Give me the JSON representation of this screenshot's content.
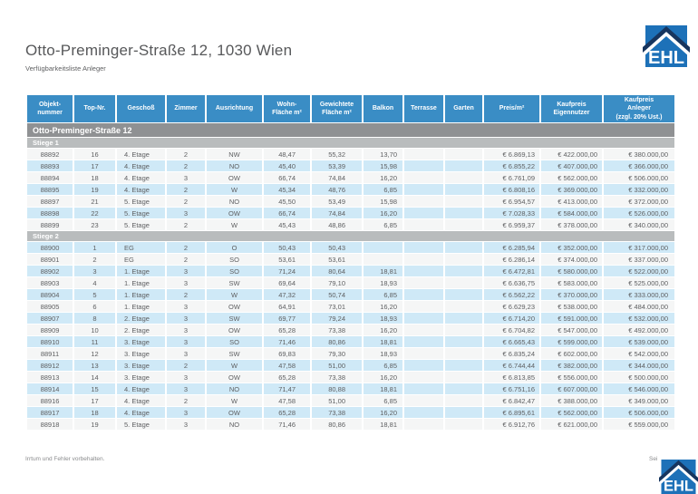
{
  "page": {
    "title": "Otto-Preminger-Straße 12, 1030 Wien",
    "subtitle": "Verfügbarkeitsliste Anleger",
    "footer_left": "Irrtum und Fehler vorbehalten.",
    "footer_right": "Sei",
    "logo_text": "EHL"
  },
  "colors": {
    "header_blue": "#3a8dc5",
    "row_blue": "#cfe9f7",
    "row_light": "#f5f6f6",
    "group_gray": "#8f9193",
    "stiege_gray": "#b9bcbd",
    "logo_blue": "#1d71b8",
    "logo_navy": "#17355e",
    "text_gray": "#5e5f61"
  },
  "table": {
    "group_header": "Otto-Preminger-Straße 12",
    "columns": [
      "Objekt-\nnummer",
      "Top-Nr.",
      "Geschoß",
      "Zimmer",
      "Ausrichtung",
      "Wohn-\nFläche m²",
      "Gewichtete\nFläche m²",
      "Balkon",
      "Terrasse",
      "Garten",
      "Preis/m²",
      "Kaufpreis\nEigennutzer",
      "Kaufpreis\nAnleger\n(zzgl. 20% Ust.)"
    ],
    "sections": [
      {
        "label": "Stiege 1",
        "rows": [
          [
            "88892",
            "16",
            "4. Etage",
            "2",
            "NW",
            "48,47",
            "55,32",
            "13,70",
            "",
            "",
            "€ 6.869,13",
            "€ 422.000,00",
            "€ 380.000,00"
          ],
          [
            "88893",
            "17",
            "4. Etage",
            "2",
            "NO",
            "45,40",
            "53,39",
            "15,98",
            "",
            "",
            "€ 6.855,22",
            "€ 407.000,00",
            "€ 366.000,00"
          ],
          [
            "88894",
            "18",
            "4. Etage",
            "3",
            "OW",
            "66,74",
            "74,84",
            "16,20",
            "",
            "",
            "€ 6.761,09",
            "€ 562.000,00",
            "€ 506.000,00"
          ],
          [
            "88895",
            "19",
            "4. Etage",
            "2",
            "W",
            "45,34",
            "48,76",
            "6,85",
            "",
            "",
            "€ 6.808,16",
            "€ 369.000,00",
            "€ 332.000,00"
          ],
          [
            "88897",
            "21",
            "5. Etage",
            "2",
            "NO",
            "45,50",
            "53,49",
            "15,98",
            "",
            "",
            "€ 6.954,57",
            "€ 413.000,00",
            "€ 372.000,00"
          ],
          [
            "88898",
            "22",
            "5. Etage",
            "3",
            "OW",
            "66,74",
            "74,84",
            "16,20",
            "",
            "",
            "€ 7.028,33",
            "€ 584.000,00",
            "€ 526.000,00"
          ],
          [
            "88899",
            "23",
            "5. Etage",
            "2",
            "W",
            "45,43",
            "48,86",
            "6,85",
            "",
            "",
            "€ 6.959,37",
            "€ 378.000,00",
            "€ 340.000,00"
          ]
        ]
      },
      {
        "label": "Stiege 2",
        "rows": [
          [
            "88900",
            "1",
            "EG",
            "2",
            "O",
            "50,43",
            "50,43",
            "",
            "",
            "",
            "€ 6.285,94",
            "€ 352.000,00",
            "€ 317.000,00"
          ],
          [
            "88901",
            "2",
            "EG",
            "2",
            "SO",
            "53,61",
            "53,61",
            "",
            "",
            "",
            "€ 6.286,14",
            "€ 374.000,00",
            "€ 337.000,00"
          ],
          [
            "88902",
            "3",
            "1. Etage",
            "3",
            "SO",
            "71,24",
            "80,64",
            "18,81",
            "",
            "",
            "€ 6.472,81",
            "€ 580.000,00",
            "€ 522.000,00"
          ],
          [
            "88903",
            "4",
            "1. Etage",
            "3",
            "SW",
            "69,64",
            "79,10",
            "18,93",
            "",
            "",
            "€ 6.636,75",
            "€ 583.000,00",
            "€ 525.000,00"
          ],
          [
            "88904",
            "5",
            "1. Etage",
            "2",
            "W",
            "47,32",
            "50,74",
            "6,85",
            "",
            "",
            "€ 6.562,22",
            "€ 370.000,00",
            "€ 333.000,00"
          ],
          [
            "88905",
            "6",
            "1. Etage",
            "3",
            "OW",
            "64,91",
            "73,01",
            "16,20",
            "",
            "",
            "€ 6.629,23",
            "€ 538.000,00",
            "€ 484.000,00"
          ],
          [
            "88907",
            "8",
            "2. Etage",
            "3",
            "SW",
            "69,77",
            "79,24",
            "18,93",
            "",
            "",
            "€ 6.714,20",
            "€ 591.000,00",
            "€ 532.000,00"
          ],
          [
            "88909",
            "10",
            "2. Etage",
            "3",
            "OW",
            "65,28",
            "73,38",
            "16,20",
            "",
            "",
            "€ 6.704,82",
            "€ 547.000,00",
            "€ 492.000,00"
          ],
          [
            "88910",
            "11",
            "3. Etage",
            "3",
            "SO",
            "71,46",
            "80,86",
            "18,81",
            "",
            "",
            "€ 6.665,43",
            "€ 599.000,00",
            "€ 539.000,00"
          ],
          [
            "88911",
            "12",
            "3. Etage",
            "3",
            "SW",
            "69,83",
            "79,30",
            "18,93",
            "",
            "",
            "€ 6.835,24",
            "€ 602.000,00",
            "€ 542.000,00"
          ],
          [
            "88912",
            "13",
            "3. Etage",
            "2",
            "W",
            "47,58",
            "51,00",
            "6,85",
            "",
            "",
            "€ 6.744,44",
            "€ 382.000,00",
            "€ 344.000,00"
          ],
          [
            "88913",
            "14",
            "3. Etage",
            "3",
            "OW",
            "65,28",
            "73,38",
            "16,20",
            "",
            "",
            "€ 6.813,85",
            "€ 556.000,00",
            "€ 500.000,00"
          ],
          [
            "88914",
            "15",
            "4. Etage",
            "3",
            "NO",
            "71,47",
            "80,88",
            "18,81",
            "",
            "",
            "€ 6.751,16",
            "€ 607.000,00",
            "€ 546.000,00"
          ],
          [
            "88916",
            "17",
            "4. Etage",
            "2",
            "W",
            "47,58",
            "51,00",
            "6,85",
            "",
            "",
            "€ 6.842,47",
            "€ 388.000,00",
            "€ 349.000,00"
          ],
          [
            "88917",
            "18",
            "4. Etage",
            "3",
            "OW",
            "65,28",
            "73,38",
            "16,20",
            "",
            "",
            "€ 6.895,61",
            "€ 562.000,00",
            "€ 506.000,00"
          ],
          [
            "88918",
            "19",
            "5. Etage",
            "3",
            "NO",
            "71,46",
            "80,86",
            "18,81",
            "",
            "",
            "€ 6.912,76",
            "€ 621.000,00",
            "€ 559.000,00"
          ]
        ]
      }
    ]
  }
}
